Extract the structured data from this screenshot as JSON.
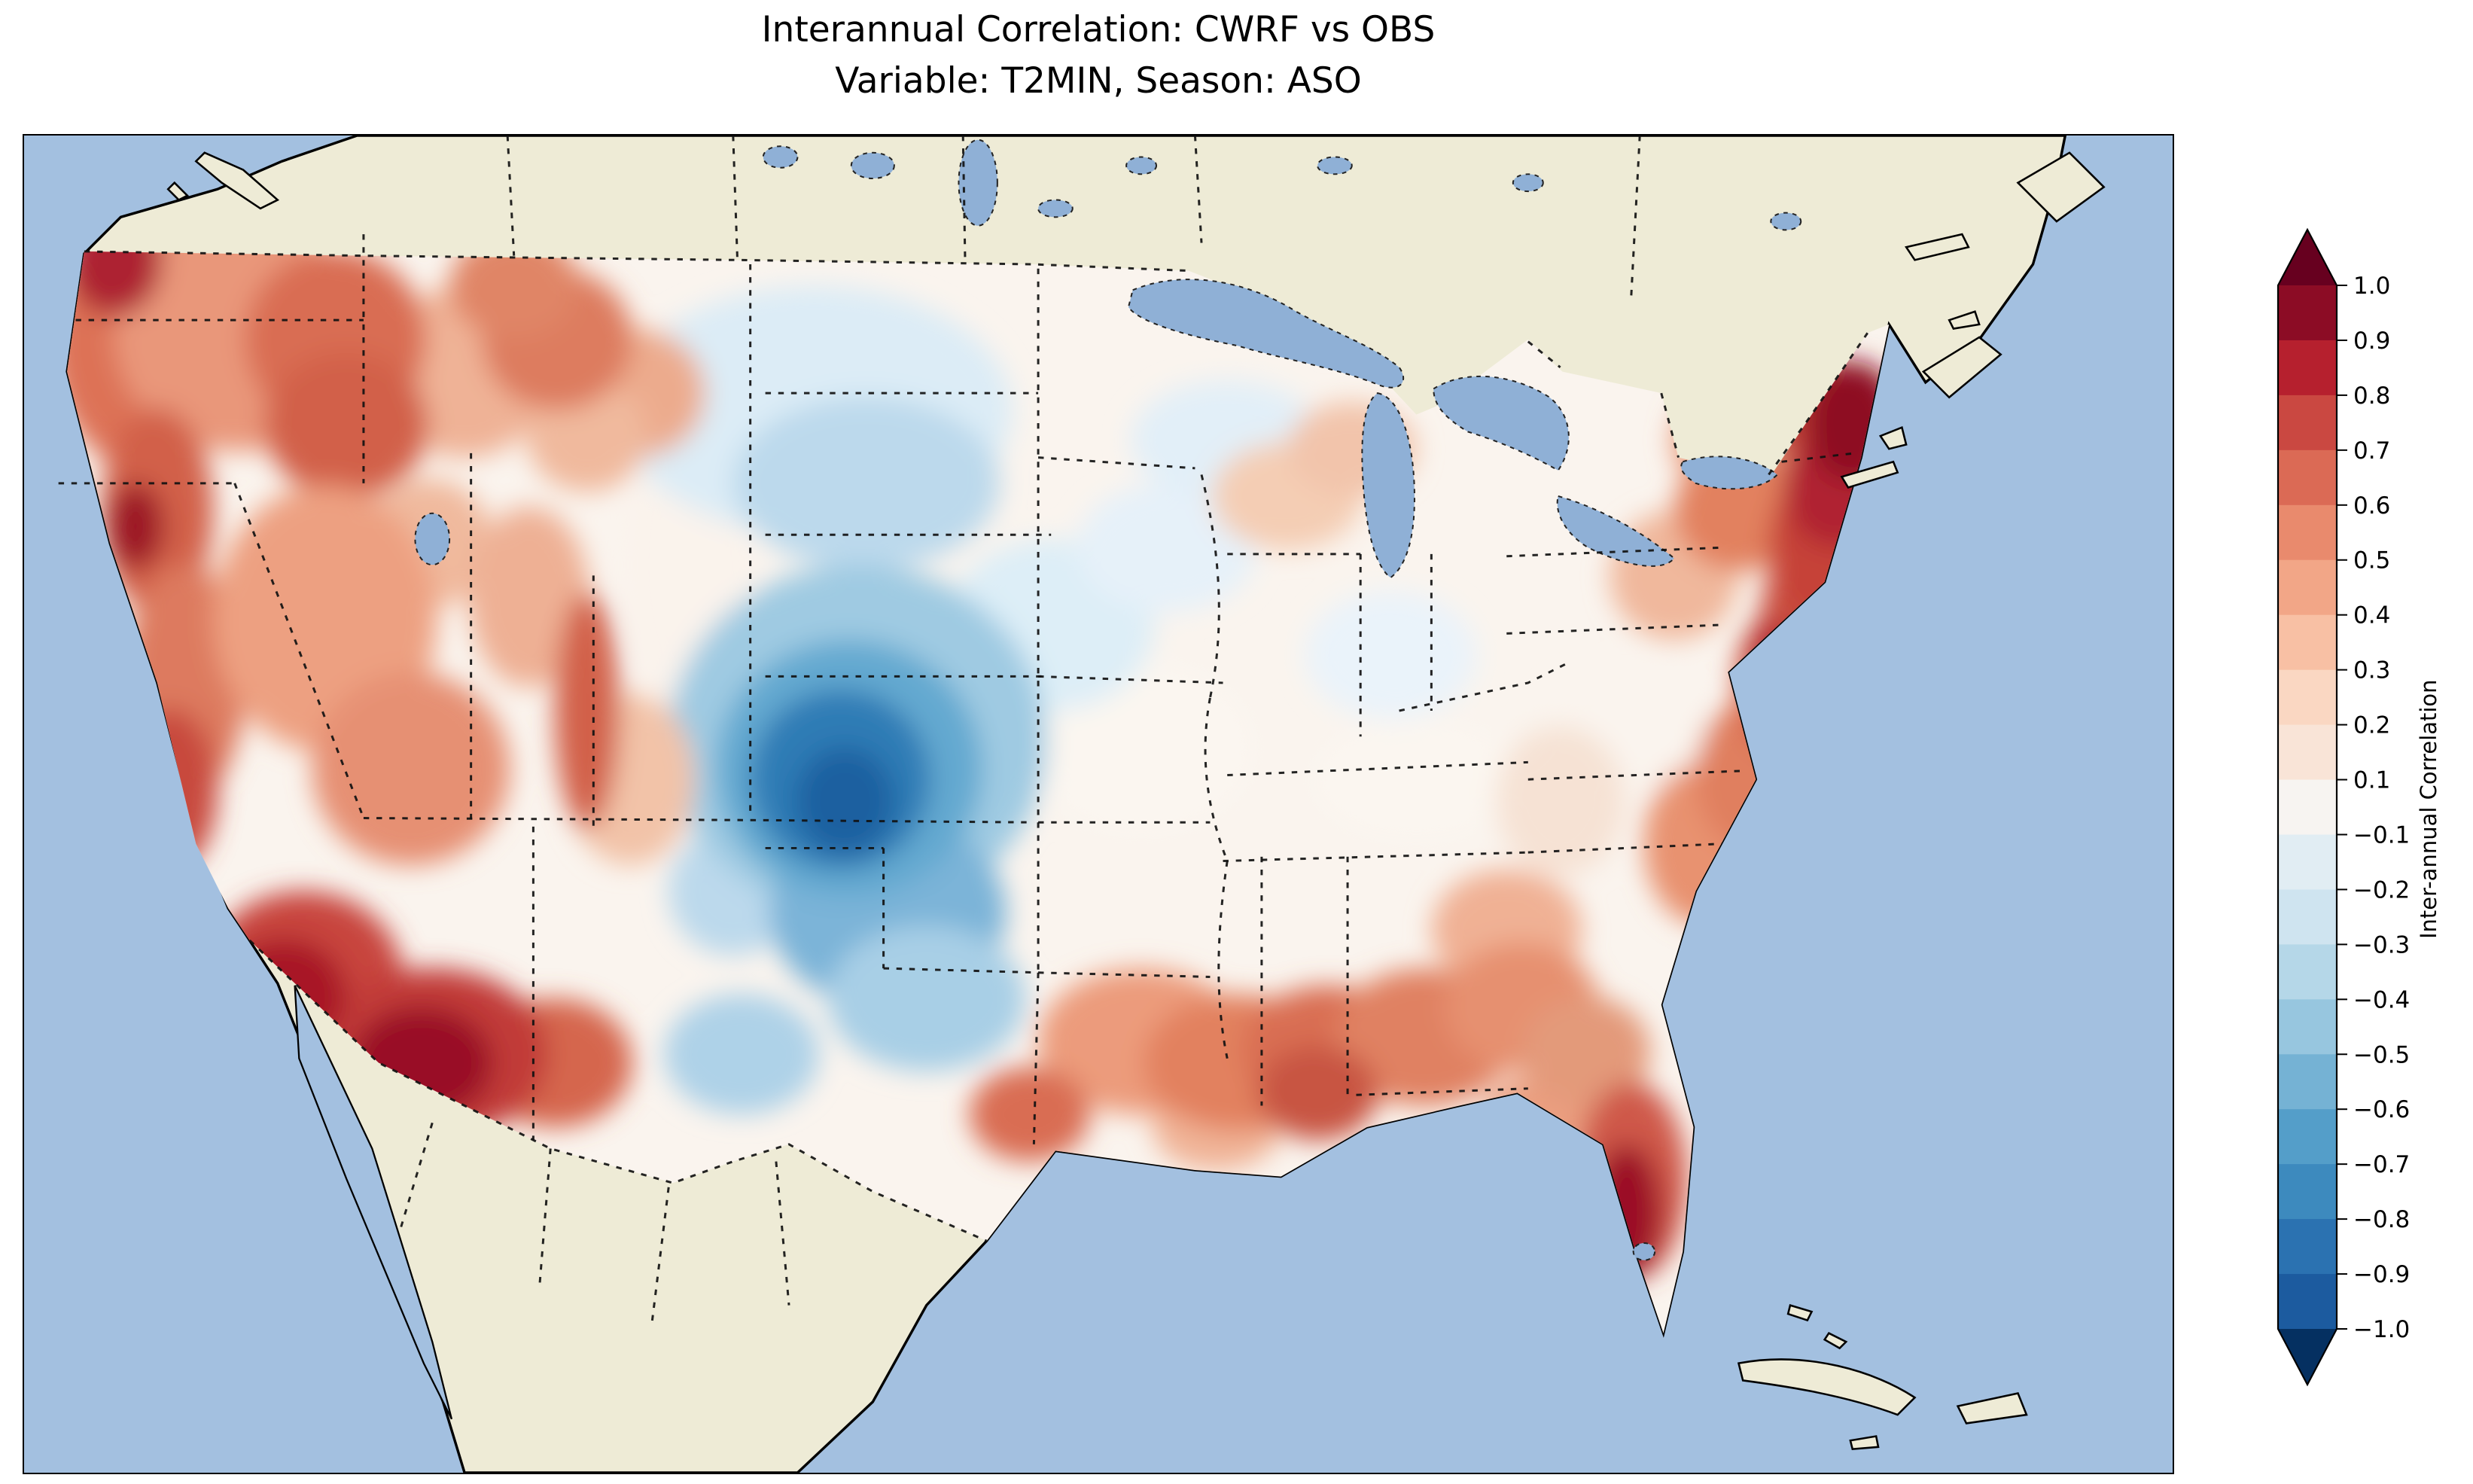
{
  "title": {
    "line1": "Interannual Correlation: CWRF vs OBS",
    "line2": "Variable: T2MIN, Season: ASO"
  },
  "colorbar": {
    "label": "Inter-annual Correlation",
    "ticks": [
      "1.0",
      "0.9",
      "0.8",
      "0.7",
      "0.6",
      "0.5",
      "0.4",
      "0.3",
      "0.2",
      "0.1",
      "−0.1",
      "−0.2",
      "−0.3",
      "−0.4",
      "−0.5",
      "−0.6",
      "−0.7",
      "−0.8",
      "−0.9",
      "−1.0"
    ],
    "segment_colors": [
      "#8c0c25",
      "#b6202e",
      "#ca4841",
      "#db6a55",
      "#e98a6d",
      "#f2a687",
      "#f8c0a4",
      "#fad7c2",
      "#f9e4d7",
      "#f7f4f1",
      "#e1edf3",
      "#cfe4f0",
      "#b5d7e8",
      "#97c6df",
      "#75b2d4",
      "#549ec9",
      "#3d8abe",
      "#2b72b1",
      "#1c5b9f"
    ],
    "over_color": "#67001f",
    "under_color": "#053061"
  },
  "map": {
    "ocean_color": "#a3c0e0",
    "land_color": "#eeebd6",
    "lake_color": "#8fb0d6",
    "base_field_color": "#faf4ee",
    "coastline_color": "#000000"
  },
  "chart_data": {
    "type": "heatmap",
    "title": "Interannual Correlation: CWRF vs OBS",
    "subtitle": "Variable: T2MIN, Season: ASO",
    "variable": "T2MIN",
    "season": "ASO",
    "colormap": "RdBu_r",
    "colorbar_label": "Inter-annual Correlation",
    "colorbar_extend": "both",
    "value_range": [
      -1.0,
      1.0
    ],
    "levels": [
      -1.0,
      -0.9,
      -0.8,
      -0.7,
      -0.6,
      -0.5,
      -0.4,
      -0.3,
      -0.2,
      -0.1,
      0.1,
      0.2,
      0.3,
      0.4,
      0.5,
      0.6,
      0.7,
      0.8,
      0.9,
      1.0
    ],
    "extent": "Continental United States with surrounding Canada, Mexico, Gulf of Mexico and Atlantic/Pacific coasts",
    "regions": [
      {
        "region": "Pacific Northwest coast (WA/OR)",
        "correlation": 0.6
      },
      {
        "region": "Northern Rockies (ID/MT)",
        "correlation": 0.5
      },
      {
        "region": "Northern California coast",
        "correlation": 0.6
      },
      {
        "region": "Great Basin (NV/UT)",
        "correlation": 0.3
      },
      {
        "region": "Southern California interior",
        "correlation": 0.7
      },
      {
        "region": "Arizona / New Mexico Southwest",
        "correlation": 0.8
      },
      {
        "region": "Western Colorado mountains",
        "correlation": 0.4
      },
      {
        "region": "Northern Plains (MT/ND/SD)",
        "correlation": -0.2
      },
      {
        "region": "Central High Plains (eastern CO / western KS)",
        "correlation": -0.7
      },
      {
        "region": "Oklahoma / Texas Panhandle",
        "correlation": -0.4
      },
      {
        "region": "Upper Midwest (MN/WI/MI)",
        "correlation": 0.1
      },
      {
        "region": "Ohio Valley / Midwest",
        "correlation": 0.0
      },
      {
        "region": "Central Texas",
        "correlation": 0.2
      },
      {
        "region": "Texas Gulf Coast",
        "correlation": 0.4
      },
      {
        "region": "Lower Mississippi / Deep South (MS/AL)",
        "correlation": 0.4
      },
      {
        "region": "Georgia / Carolinas coastal plain",
        "correlation": 0.4
      },
      {
        "region": "Florida peninsula",
        "correlation": 0.8
      },
      {
        "region": "Mid-Atlantic coast (NJ/DE/MD)",
        "correlation": 0.6
      },
      {
        "region": "New England / Northeast corridor",
        "correlation": 0.8
      }
    ]
  }
}
